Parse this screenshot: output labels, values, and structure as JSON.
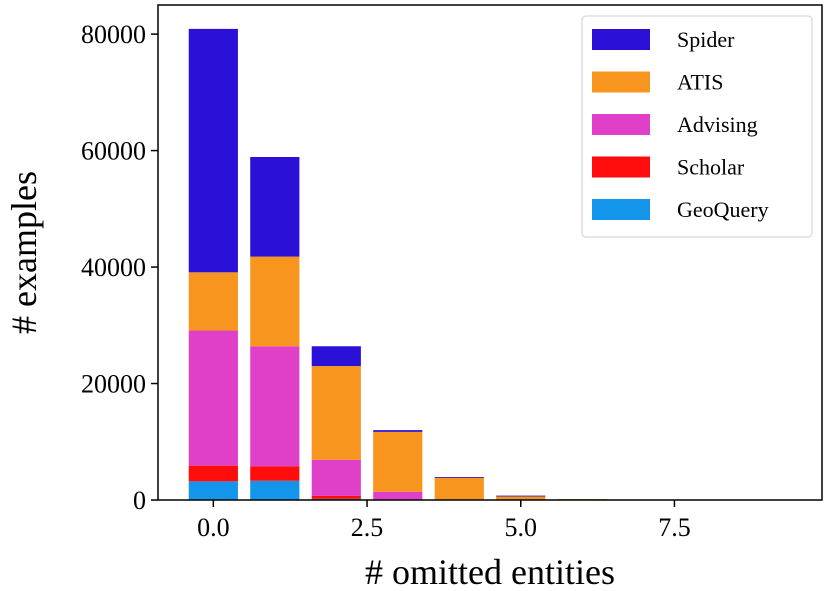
{
  "chart_data": {
    "type": "bar",
    "stacked": true,
    "title": "",
    "xlabel": "# omitted entities",
    "ylabel": "# examples",
    "x": [
      0,
      1,
      2,
      3,
      4,
      5,
      6,
      7,
      8,
      9
    ],
    "xlim": [
      -0.9,
      9.9
    ],
    "ylim": [
      0,
      85000
    ],
    "xticks": [
      0.0,
      2.5,
      5.0,
      7.5
    ],
    "xtick_labels": [
      "0.0",
      "2.5",
      "5.0",
      "7.5"
    ],
    "yticks": [
      0,
      20000,
      40000,
      60000,
      80000
    ],
    "ytick_labels": [
      "0",
      "20000",
      "40000",
      "60000",
      "80000"
    ],
    "legend_position": "top-right",
    "series": [
      {
        "name": "GeoQuery",
        "color": "#1295ea",
        "values": [
          3200,
          3300,
          200,
          0,
          0,
          0,
          0,
          0,
          0,
          0
        ]
      },
      {
        "name": "Scholar",
        "color": "#ff0d0d",
        "values": [
          2700,
          2500,
          500,
          100,
          0,
          0,
          0,
          0,
          0,
          0
        ]
      },
      {
        "name": "Advising",
        "color": "#e040c8",
        "values": [
          23200,
          20600,
          6200,
          1300,
          100,
          0,
          0,
          0,
          0,
          0
        ]
      },
      {
        "name": "ATIS",
        "color": "#f7951e",
        "values": [
          10000,
          15400,
          16100,
          10300,
          3800,
          700,
          150,
          50,
          0,
          0
        ]
      },
      {
        "name": "Spider",
        "color": "#2b10d8",
        "values": [
          41800,
          17100,
          3400,
          300,
          50,
          50,
          0,
          0,
          0,
          0
        ]
      }
    ],
    "legend_order": [
      "Spider",
      "ATIS",
      "Advising",
      "Scholar",
      "GeoQuery"
    ]
  }
}
